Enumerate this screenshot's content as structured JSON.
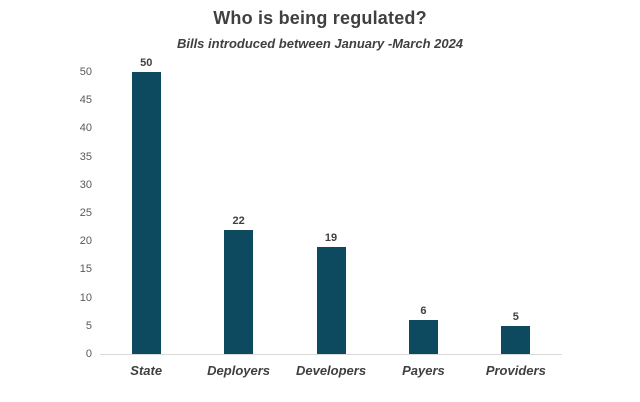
{
  "header": {
    "title": "Who is being regulated?",
    "subtitle": "Bills introduced between January -March 2024"
  },
  "chart_data": {
    "type": "bar",
    "title": "Who is being regulated?",
    "subtitle": "Bills introduced between January -March 2024",
    "categories": [
      "State",
      "Deployers",
      "Developers",
      "Payers",
      "Providers"
    ],
    "values": [
      50,
      22,
      19,
      6,
      5
    ],
    "data_labels": [
      "50",
      "22",
      "19",
      "6",
      "5"
    ],
    "xlabel": "",
    "ylabel": "",
    "ylim": [
      0,
      50
    ],
    "ytick_step": 5,
    "yticks": [
      0,
      5,
      10,
      15,
      20,
      25,
      30,
      35,
      40,
      45,
      50
    ],
    "grid": false,
    "legend": false,
    "colors": {
      "bar": "#0d4a5f",
      "title_text": "#404040",
      "tick_text": "#595959",
      "category_text": "#3f3f3f",
      "axis_line": "#d9d9d9",
      "background": "#ffffff"
    }
  }
}
